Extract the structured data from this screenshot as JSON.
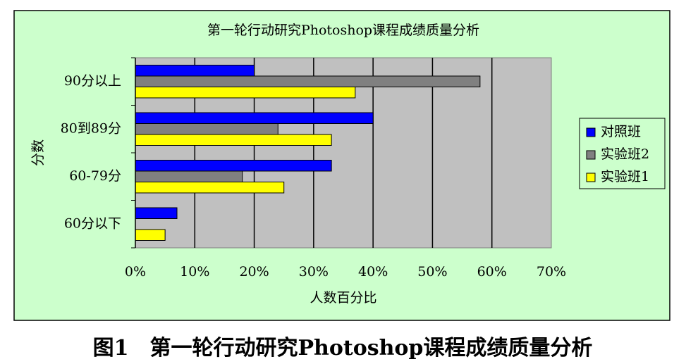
{
  "chart_data": {
    "type": "bar",
    "orientation": "horizontal",
    "title": "第一轮行动研究Photoshop课程成绩质量分析",
    "caption": "图1　第一轮行动研究Photoshop课程成绩质量分析",
    "x_label": "人数百分比",
    "y_label": "分数",
    "categories": [
      "90分以上",
      "80到89分",
      "60-79分",
      "60分以下"
    ],
    "series": [
      {
        "name": "对照班",
        "color": "#0000ff",
        "values": [
          20,
          40,
          33,
          7
        ]
      },
      {
        "name": "实验班2",
        "color": "#808080",
        "values": [
          58,
          24,
          18,
          0
        ]
      },
      {
        "name": "实验班1",
        "color": "#ffff00",
        "values": [
          37,
          33,
          25,
          5
        ]
      }
    ],
    "xlim": [
      0,
      70
    ],
    "xticks": [
      {
        "value": 0,
        "label": "0%"
      },
      {
        "value": 10,
        "label": "10%"
      },
      {
        "value": 20,
        "label": "20%"
      },
      {
        "value": 30,
        "label": "30%"
      },
      {
        "value": 40,
        "label": "40%"
      },
      {
        "value": 50,
        "label": "50%"
      },
      {
        "value": 60,
        "label": "60%"
      },
      {
        "value": 70,
        "label": "70%"
      }
    ],
    "grid": true,
    "legend": "right"
  }
}
